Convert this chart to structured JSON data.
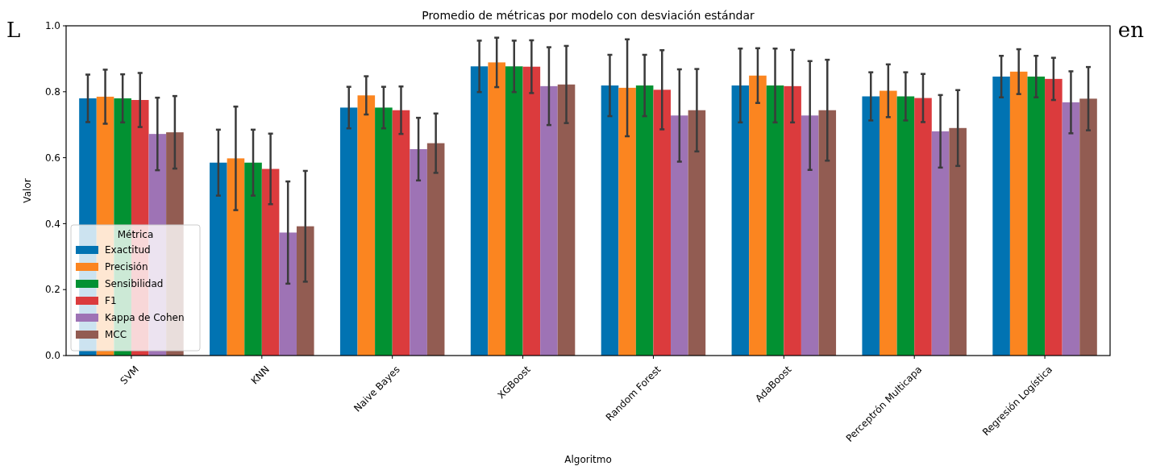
{
  "chart_data": {
    "type": "bar",
    "title": "Promedio de métricas por modelo con desviación estándar",
    "xlabel": "Algoritmo",
    "ylabel": "Valor",
    "legend_title": "Métrica",
    "legend": "bottom left",
    "annotations": [
      "L",
      "en"
    ],
    "categories": [
      "SVM",
      "KNN",
      "Naive Bayes",
      "XGBoost",
      "Random Forest",
      "AdaBoost",
      "Perceptrón Multicapa",
      "Regresión Logística"
    ],
    "ylim": [
      0,
      1.0
    ],
    "yticks": [
      {
        "value": 0,
        "label": "0.0"
      },
      0.2,
      0.4,
      0.6,
      0.8,
      {
        "value": 1,
        "label": "1.0"
      }
    ],
    "series": [
      {
        "name": "Exactitud",
        "color": "#0173b2",
        "values": [
          0.78,
          0.585,
          0.752,
          0.877,
          0.819,
          0.819,
          0.786,
          0.846
        ],
        "errors": [
          0.072,
          0.1,
          0.063,
          0.078,
          0.093,
          0.112,
          0.073,
          0.063
        ]
      },
      {
        "name": "Precisión",
        "color": "#fb8520",
        "values": [
          0.785,
          0.598,
          0.789,
          0.889,
          0.812,
          0.849,
          0.803,
          0.861
        ],
        "errors": [
          0.082,
          0.157,
          0.058,
          0.075,
          0.147,
          0.083,
          0.08,
          0.068
        ]
      },
      {
        "name": "Sensibilidad",
        "color": "#029132",
        "values": [
          0.78,
          0.585,
          0.752,
          0.877,
          0.819,
          0.819,
          0.786,
          0.846
        ],
        "errors": [
          0.073,
          0.1,
          0.063,
          0.078,
          0.093,
          0.112,
          0.073,
          0.063
        ]
      },
      {
        "name": "F1",
        "color": "#db3b3d",
        "values": [
          0.775,
          0.566,
          0.744,
          0.876,
          0.806,
          0.817,
          0.781,
          0.839
        ],
        "errors": [
          0.082,
          0.107,
          0.072,
          0.08,
          0.12,
          0.11,
          0.073,
          0.064
        ]
      },
      {
        "name": "Kappa de Cohen",
        "color": "#9e73b5",
        "values": [
          0.672,
          0.373,
          0.626,
          0.817,
          0.728,
          0.728,
          0.68,
          0.768
        ],
        "errors": [
          0.11,
          0.155,
          0.095,
          0.118,
          0.14,
          0.165,
          0.11,
          0.094
        ]
      },
      {
        "name": "MCC",
        "color": "#925c52",
        "values": [
          0.677,
          0.392,
          0.644,
          0.822,
          0.744,
          0.744,
          0.69,
          0.779
        ],
        "errors": [
          0.11,
          0.168,
          0.09,
          0.117,
          0.125,
          0.153,
          0.115,
          0.096
        ]
      }
    ]
  }
}
